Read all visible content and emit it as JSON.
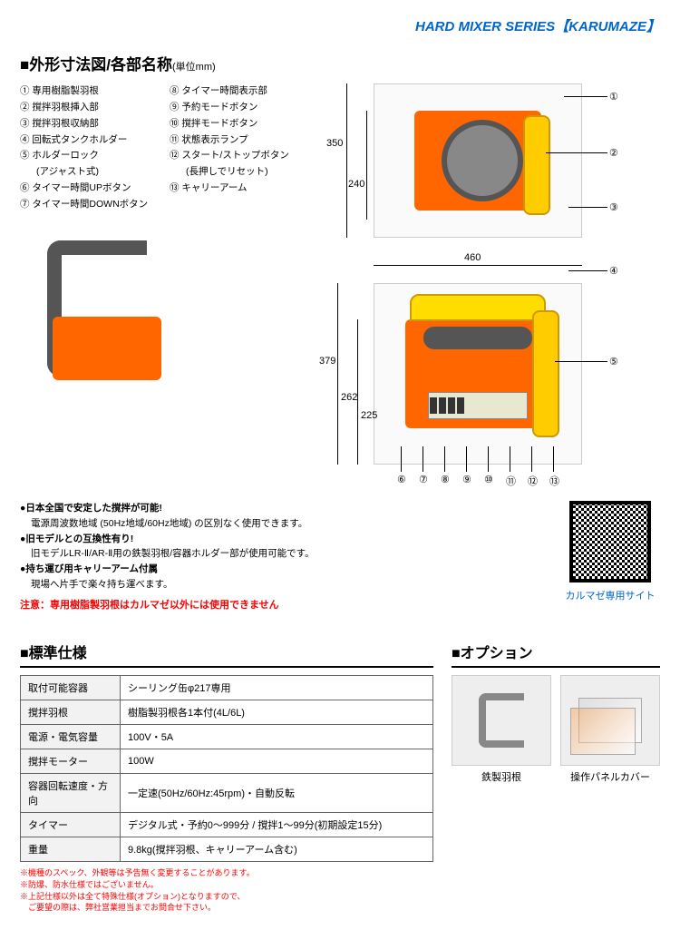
{
  "header": {
    "title": "HARD MIXER SERIES【KARUMAZE】",
    "color": "#0066cc"
  },
  "dimensions_section": {
    "heading_prefix": "■",
    "heading": "外形寸法図/各部名称",
    "unit_label": "(単位mm)"
  },
  "parts_legend": {
    "col1": [
      {
        "num": "①",
        "text": "専用樹脂製羽根"
      },
      {
        "num": "②",
        "text": "撹拌羽根挿入部"
      },
      {
        "num": "③",
        "text": "撹拌羽根収納部"
      },
      {
        "num": "④",
        "text": "回転式タンクホルダー"
      },
      {
        "num": "⑤",
        "text": "ホルダーロック",
        "sub": "(アジャスト式)"
      },
      {
        "num": "⑥",
        "text": "タイマー時間UPボタン"
      },
      {
        "num": "⑦",
        "text": "タイマー時間DOWNボタン"
      }
    ],
    "col2": [
      {
        "num": "⑧",
        "text": "タイマー時間表示部"
      },
      {
        "num": "⑨",
        "text": "予約モードボタン"
      },
      {
        "num": "⑩",
        "text": "撹拌モードボタン"
      },
      {
        "num": "⑪",
        "text": "状態表示ランプ"
      },
      {
        "num": "⑫",
        "text": "スタート/ストップボタン",
        "sub": "(長押しでリセット)"
      },
      {
        "num": "⑬",
        "text": "キャリーアーム"
      }
    ]
  },
  "dimensions": {
    "top_height_outer": "350",
    "top_height_inner": "240",
    "width": "460",
    "side_height_outer": "379",
    "side_height_mid": "262",
    "side_height_inner": "225"
  },
  "callouts_top": [
    "①",
    "②",
    "③",
    "④"
  ],
  "callouts_side_right": [
    "⑤"
  ],
  "callouts_side_bottom": [
    "⑥",
    "⑦",
    "⑧",
    "⑨",
    "⑩",
    "⑪",
    "⑫",
    "⑬"
  ],
  "notes": {
    "items": [
      {
        "head": "●日本全国で安定した撹拌が可能!",
        "body": "電源周波数地域 (50Hz地域/60Hz地域) の区別なく使用できます。"
      },
      {
        "head": "●旧モデルとの互換性有り!",
        "body": "旧モデルLR-Ⅱ/AR-Ⅱ用の鉄製羽根/容器ホルダー部が使用可能です。"
      },
      {
        "head": "●持ち運び用キャリーアーム付属",
        "body": "現場へ片手で楽々持ち運べます。"
      }
    ],
    "warning": "注意：専用樹脂製羽根はカルマゼ以外には使用できません"
  },
  "qr": {
    "caption": "カルマゼ専用サイト",
    "caption_color": "#0066cc"
  },
  "spec": {
    "heading_prefix": "■",
    "heading": "標準仕様",
    "rows": [
      {
        "k": "取付可能容器",
        "v": "シーリング缶φ217専用"
      },
      {
        "k": "撹拌羽根",
        "v": "樹脂製羽根各1本付(4L/6L)"
      },
      {
        "k": "電源・電気容量",
        "v": "100V・5A"
      },
      {
        "k": "撹拌モーター",
        "v": "100W"
      },
      {
        "k": "容器回転速度・方向",
        "v": "一定速(50Hz/60Hz:45rpm)・自動反転"
      },
      {
        "k": "タイマー",
        "v": "デジタル式・予約0〜999分 / 撹拌1〜99分(初期設定15分)"
      },
      {
        "k": "重量",
        "v": "9.8kg(撹拌羽根、キャリーアーム含む)"
      }
    ],
    "footnotes": [
      "※機種のスペック、外観等は予告無く変更することがあります。",
      "※防爆、防水仕様ではございません。",
      "※上記仕様以外は全て特殊仕様(オプション)となりますので、",
      "　ご要望の際は、弊社営業担当までお問合せ下さい。"
    ],
    "footnote_color": "#ff0000"
  },
  "options": {
    "heading_prefix": "■",
    "heading": "オプション",
    "items": [
      {
        "caption": "鉄製羽根"
      },
      {
        "caption": "操作パネルカバー"
      }
    ]
  },
  "colors": {
    "machine_body": "#ff6600",
    "machine_handle": "#ffdd00",
    "arm_gray": "#555555"
  }
}
